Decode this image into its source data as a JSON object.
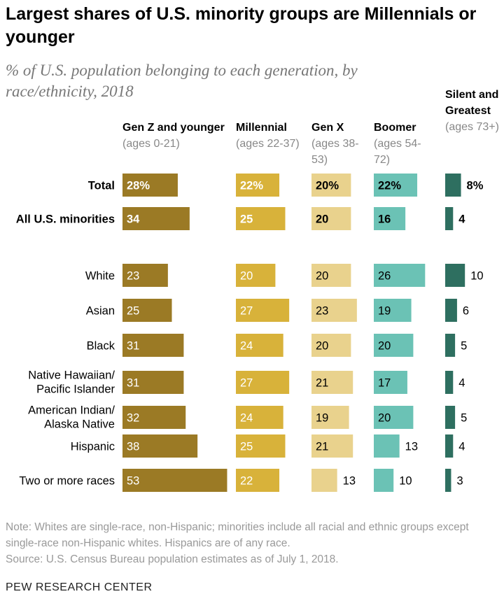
{
  "title": "Largest shares of U.S. minority groups are Millennials or younger",
  "subtitle": "% of U.S. population belonging to each generation, by race/ethnicity, 2018",
  "columns": [
    {
      "name": "Gen Z and younger",
      "ages": "(ages 0-21)",
      "color": "#9b7a25"
    },
    {
      "name": "Millennial",
      "ages": "(ages 22-37)",
      "color": "#d8b23a"
    },
    {
      "name": "Gen X",
      "ages": "(ages 38-53)",
      "color": "#e9d28d"
    },
    {
      "name": "Boomer",
      "ages": "(ages 54-72)",
      "color": "#6bc2b5"
    },
    {
      "name": "Silent and Greatest",
      "ages": "(ages 73+)",
      "color": "#2e6f60"
    }
  ],
  "chart_data": {
    "type": "bar",
    "title": "Largest shares of U.S. minority groups are Millennials or younger",
    "unit": "% of U.S. population",
    "categories": [
      "Total",
      "All U.S. minorities",
      "White",
      "Asian",
      "Black",
      "Native Hawaiian/ Pacific Islander",
      "American Indian/ Alaska Native",
      "Hispanic",
      "Two or more races"
    ],
    "bold_categories": [
      "Total",
      "All U.S. minorities"
    ],
    "series": [
      {
        "name": "Gen Z and younger",
        "values": [
          28,
          34,
          23,
          25,
          31,
          31,
          32,
          38,
          53
        ]
      },
      {
        "name": "Millennial",
        "values": [
          22,
          25,
          20,
          27,
          24,
          27,
          24,
          25,
          22
        ]
      },
      {
        "name": "Gen X",
        "values": [
          20,
          20,
          20,
          23,
          20,
          21,
          19,
          21,
          13
        ]
      },
      {
        "name": "Boomer",
        "values": [
          22,
          16,
          26,
          19,
          20,
          17,
          20,
          13,
          10
        ]
      },
      {
        "name": "Silent and Greatest",
        "values": [
          8,
          4,
          10,
          6,
          5,
          4,
          5,
          4,
          3
        ]
      }
    ],
    "first_row_suffix": "%"
  },
  "note": "Note: Whites are single-race, non-Hispanic; minorities include all racial and ethnic groups except single-race non-Hispanic whites. Hispanics are of any race.",
  "source": "Source: U.S. Census Bureau population estimates as of July 1, 2018.",
  "footer": "PEW RESEARCH CENTER"
}
